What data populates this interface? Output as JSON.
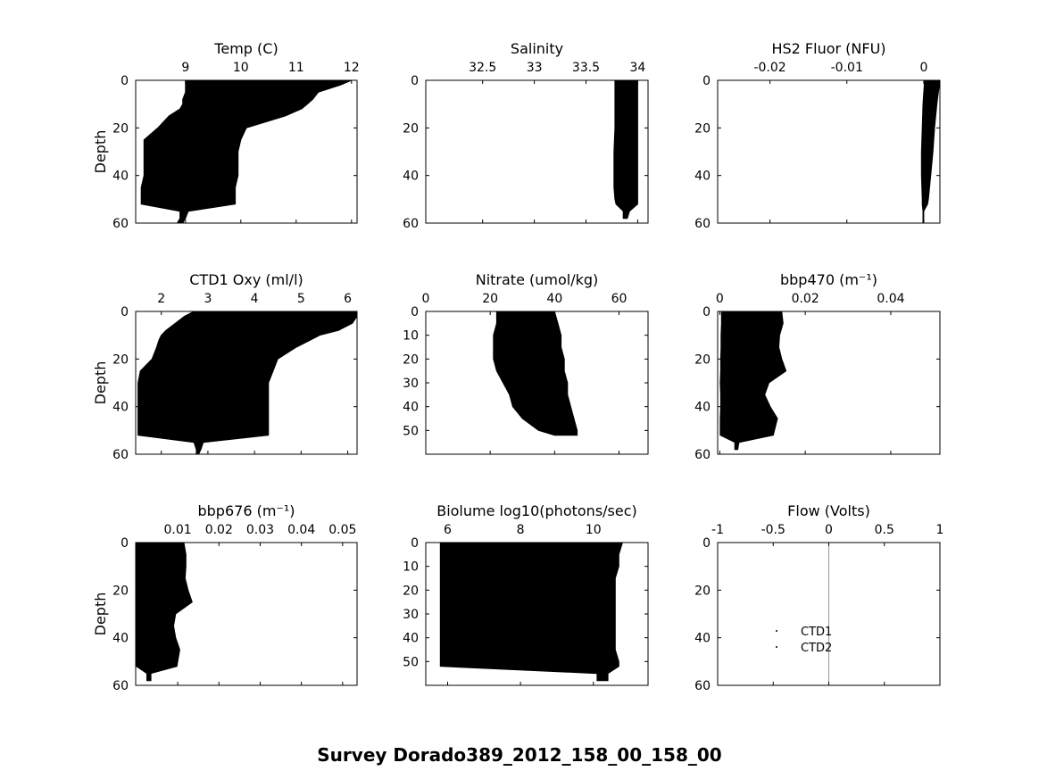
{
  "figure_title": "Survey Dorado389_2012_158_00_158_00",
  "chart_data": [
    {
      "type": "scatter",
      "title": "Temp (C)",
      "xlabel": "",
      "ylabel": "Depth",
      "xlim": [
        8.1,
        12.1
      ],
      "ylim": [
        60,
        0
      ],
      "xticks": [
        9,
        10,
        11,
        12
      ],
      "xticklabels": [
        "9",
        "10",
        "11",
        "12"
      ],
      "yticks": [
        0,
        20,
        40,
        60
      ],
      "yticklabels": [
        "0",
        "20",
        "40",
        "60"
      ],
      "series": [
        {
          "depth": [
            0,
            2,
            5,
            8,
            10,
            12,
            15,
            20,
            25,
            30,
            35,
            40,
            45,
            50,
            52,
            55,
            58,
            60
          ],
          "min": [
            9.0,
            9.0,
            9.0,
            8.95,
            8.95,
            8.9,
            8.7,
            8.5,
            8.25,
            8.25,
            8.25,
            8.25,
            8.2,
            8.2,
            8.2,
            8.9,
            8.9,
            8.85
          ],
          "max": [
            12.0,
            11.8,
            11.4,
            11.3,
            11.2,
            11.1,
            10.8,
            10.1,
            10.0,
            9.95,
            9.95,
            9.95,
            9.9,
            9.9,
            9.9,
            9.05,
            9.0,
            8.95
          ]
        }
      ]
    },
    {
      "type": "scatter",
      "title": "Salinity",
      "xlabel": "",
      "ylabel": "",
      "xlim": [
        31.95,
        34.1
      ],
      "ylim": [
        60,
        0
      ],
      "xticks": [
        32.5,
        33,
        33.5,
        34
      ],
      "xticklabels": [
        "32.5",
        "33",
        "33.5",
        "34"
      ],
      "yticks": [
        0,
        20,
        40,
        60
      ],
      "yticklabels": [
        "0",
        "20",
        "40",
        "60"
      ],
      "series": [
        {
          "depth": [
            0,
            10,
            20,
            30,
            40,
            45,
            50,
            52,
            55,
            58
          ],
          "min": [
            33.78,
            33.78,
            33.78,
            33.77,
            33.77,
            33.77,
            33.78,
            33.79,
            33.86,
            33.86
          ],
          "max": [
            34.0,
            34.0,
            34.0,
            34.0,
            34.0,
            34.0,
            34.0,
            34.0,
            33.92,
            33.9
          ]
        }
      ]
    },
    {
      "type": "scatter",
      "title": "HS2 Fluor (NFU)",
      "xlabel": "",
      "ylabel": "",
      "xlim": [
        -0.0268,
        0.0021
      ],
      "ylim": [
        60,
        0
      ],
      "xticks": [
        -0.02,
        -0.01,
        0
      ],
      "xticklabels": [
        "-0.02",
        "-0.01",
        "0"
      ],
      "yticks": [
        0,
        20,
        40,
        60
      ],
      "yticklabels": [
        "0",
        "20",
        "40",
        "60"
      ],
      "series": [
        {
          "depth": [
            0,
            5,
            10,
            20,
            30,
            40,
            50,
            52,
            55,
            60
          ],
          "min": [
            0.0001,
            0.0,
            -0.0001,
            -0.0002,
            -0.0003,
            -0.0003,
            -0.0002,
            -0.0002,
            -0.0001,
            -0.0001
          ],
          "max": [
            0.0021,
            0.0019,
            0.0017,
            0.0014,
            0.0012,
            0.0009,
            0.0006,
            0.0005,
            0.0,
            0.0
          ]
        }
      ]
    },
    {
      "type": "scatter",
      "title": "CTD1 Oxy (ml/l)",
      "xlabel": "",
      "ylabel": "Depth",
      "xlim": [
        1.45,
        6.2
      ],
      "ylim": [
        60,
        0
      ],
      "xticks": [
        2,
        3,
        4,
        5,
        6
      ],
      "xticklabels": [
        "2",
        "3",
        "4",
        "5",
        "6"
      ],
      "yticks": [
        0,
        20,
        40,
        60
      ],
      "yticklabels": [
        "0",
        "20",
        "40",
        "60"
      ],
      "series": [
        {
          "depth": [
            0,
            2,
            5,
            8,
            10,
            12,
            15,
            20,
            25,
            30,
            35,
            40,
            45,
            50,
            52,
            55,
            58,
            60
          ],
          "min": [
            2.7,
            2.5,
            2.3,
            2.1,
            2.0,
            1.95,
            1.9,
            1.8,
            1.55,
            1.5,
            1.5,
            1.5,
            1.5,
            1.5,
            1.5,
            2.7,
            2.75,
            2.75
          ],
          "max": [
            6.2,
            6.2,
            6.1,
            5.8,
            5.4,
            5.2,
            4.9,
            4.5,
            4.4,
            4.3,
            4.3,
            4.3,
            4.3,
            4.3,
            4.3,
            2.9,
            2.85,
            2.8
          ]
        }
      ]
    },
    {
      "type": "scatter",
      "title": "Nitrate (umol/kg)",
      "xlabel": "",
      "ylabel": "",
      "xlim": [
        0,
        69
      ],
      "ylim": [
        60,
        0
      ],
      "xticks": [
        0,
        20,
        40,
        60
      ],
      "xticklabels": [
        "0",
        "20",
        "40",
        "60"
      ],
      "yticks": [
        0,
        10,
        20,
        30,
        40,
        50
      ],
      "yticklabels": [
        "0",
        "10",
        "20",
        "30",
        "40",
        "50"
      ],
      "series": [
        {
          "depth": [
            0,
            5,
            10,
            15,
            20,
            25,
            30,
            35,
            40,
            45,
            50,
            52
          ],
          "min": [
            22,
            22,
            21,
            21,
            21,
            22,
            24,
            26,
            27,
            30,
            35,
            40
          ],
          "max": [
            40,
            41,
            42,
            42,
            43,
            43,
            44,
            44,
            45,
            46,
            47,
            47
          ]
        }
      ]
    },
    {
      "type": "scatter",
      "title": "bbp470 (m⁻¹)",
      "xlabel": "",
      "ylabel": "",
      "xlim": [
        -0.0005,
        0.0515
      ],
      "ylim": [
        60,
        0
      ],
      "xticks": [
        0,
        0.02,
        0.04
      ],
      "xticklabels": [
        "0",
        "0.02",
        "0.04"
      ],
      "yticks": [
        0,
        20,
        40,
        60
      ],
      "yticklabels": [
        "0",
        "20",
        "40",
        "60"
      ],
      "series": [
        {
          "depth": [
            0,
            5,
            10,
            15,
            20,
            25,
            30,
            35,
            40,
            45,
            50,
            52,
            55,
            58
          ],
          "min": [
            0.0004,
            0.0004,
            0.0003,
            0.0003,
            0.0002,
            0.0002,
            0.0001,
            0.0002,
            0.0002,
            0.0001,
            0.0001,
            0.0001,
            0.0035,
            0.0035
          ],
          "max": [
            0.0145,
            0.0148,
            0.014,
            0.0138,
            0.0145,
            0.0155,
            0.0115,
            0.0105,
            0.0118,
            0.0135,
            0.0128,
            0.0125,
            0.0045,
            0.0042
          ]
        }
      ]
    },
    {
      "type": "scatter",
      "title": "bbp676 (m⁻¹)",
      "xlabel": "",
      "ylabel": "Depth",
      "xlim": [
        -0.0002,
        0.0535
      ],
      "ylim": [
        60,
        0
      ],
      "xticks": [
        0.01,
        0.02,
        0.03,
        0.04,
        0.05
      ],
      "xticklabels": [
        "0.01",
        "0.02",
        "0.03",
        "0.04",
        "0.05"
      ],
      "yticks": [
        0,
        20,
        40,
        60
      ],
      "yticklabels": [
        "0",
        "20",
        "40",
        "60"
      ],
      "series": [
        {
          "depth": [
            0,
            5,
            10,
            15,
            20,
            25,
            30,
            35,
            40,
            45,
            50,
            52,
            55,
            58
          ],
          "min": [
            0.0,
            0.0,
            0.0,
            0.0,
            0.0,
            0.0,
            0.0,
            0.0,
            0.0,
            0.0,
            0.0,
            0.0,
            0.0025,
            0.0025
          ],
          "max": [
            0.0115,
            0.012,
            0.012,
            0.0118,
            0.0125,
            0.0135,
            0.0095,
            0.009,
            0.0095,
            0.0105,
            0.01,
            0.0098,
            0.0035,
            0.0035
          ]
        }
      ]
    },
    {
      "type": "scatter",
      "title": "Biolume log10(photons/sec)",
      "xlabel": "",
      "ylabel": "",
      "xlim": [
        5.4,
        11.5
      ],
      "ylim": [
        60,
        0
      ],
      "xticks": [
        6,
        8,
        10
      ],
      "xticklabels": [
        "6",
        "8",
        "10"
      ],
      "yticks": [
        0,
        10,
        20,
        30,
        40,
        50
      ],
      "yticklabels": [
        "0",
        "10",
        "20",
        "30",
        "40",
        "50"
      ],
      "series": [
        {
          "depth": [
            0,
            5,
            10,
            15,
            20,
            25,
            30,
            35,
            40,
            45,
            50,
            52,
            55,
            58
          ],
          "min": [
            5.8,
            5.8,
            5.8,
            5.8,
            5.8,
            5.8,
            5.8,
            5.8,
            5.8,
            5.8,
            5.8,
            5.8,
            10.1,
            10.1
          ],
          "max": [
            10.8,
            10.7,
            10.7,
            10.6,
            10.6,
            10.6,
            10.6,
            10.6,
            10.6,
            10.6,
            10.7,
            10.7,
            10.4,
            10.4
          ]
        }
      ]
    },
    {
      "type": "scatter",
      "title": "Flow (Volts)",
      "xlabel": "",
      "ylabel": "",
      "xlim": [
        -1,
        1
      ],
      "ylim": [
        60,
        0
      ],
      "xticks": [
        -1,
        -0.5,
        0,
        0.5,
        1
      ],
      "xticklabels": [
        "-1",
        "-0.5",
        "0",
        "0.5",
        "1"
      ],
      "yticks": [
        0,
        20,
        40,
        60
      ],
      "yticklabels": [
        "0",
        "20",
        "40",
        "60"
      ],
      "vline_x": 0,
      "legend": {
        "entries": [
          "CTD1",
          "CTD2"
        ],
        "placement": "center-left"
      },
      "series": []
    }
  ]
}
